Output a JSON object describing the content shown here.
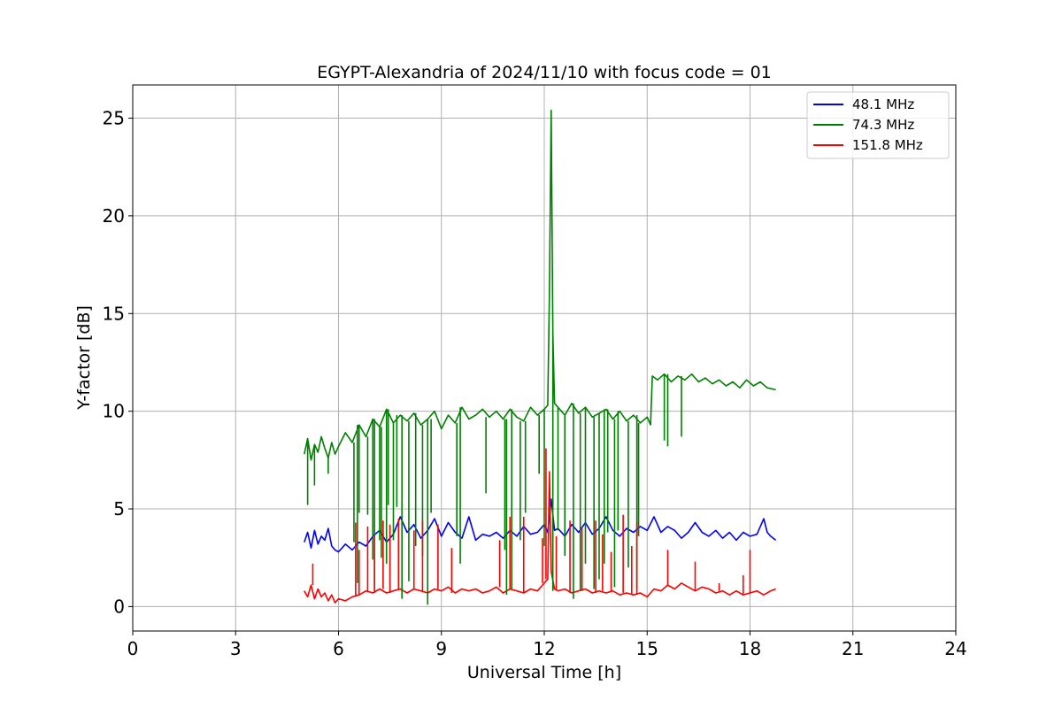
{
  "chart_data": {
    "type": "line",
    "title": "EGYPT-Alexandria of 2024/11/10 with focus code = 01",
    "xlabel": "Universal Time [h]",
    "ylabel": "Y-factor [dB]",
    "xlim": [
      0,
      24
    ],
    "ylim": [
      -1.25,
      26.7
    ],
    "xticks": [
      0,
      3,
      6,
      9,
      12,
      15,
      18,
      21,
      24
    ],
    "yticks": [
      0,
      5,
      10,
      15,
      20,
      25
    ],
    "xtick_labels": [
      "0",
      "3",
      "6",
      "9",
      "12",
      "15",
      "18",
      "21",
      "24"
    ],
    "ytick_labels": [
      "0",
      "5",
      "10",
      "15",
      "20",
      "25"
    ],
    "grid": true,
    "legend_position": "top-right",
    "series": [
      {
        "name": " 48.1 MHz",
        "color": "#0000ff",
        "x": [
          5.0,
          5.1,
          5.2,
          5.3,
          5.4,
          5.5,
          5.6,
          5.7,
          5.8,
          5.9,
          6.0,
          6.2,
          6.4,
          6.6,
          6.8,
          7.0,
          7.2,
          7.4,
          7.6,
          7.8,
          8.0,
          8.2,
          8.4,
          8.6,
          8.8,
          9.0,
          9.2,
          9.4,
          9.6,
          9.8,
          10.0,
          10.2,
          10.4,
          10.6,
          10.8,
          11.0,
          11.2,
          11.4,
          11.6,
          11.8,
          12.0,
          12.1,
          12.2,
          12.3,
          12.4,
          12.6,
          12.8,
          13.0,
          13.2,
          13.4,
          13.6,
          13.8,
          14.0,
          14.2,
          14.4,
          14.6,
          14.8,
          15.0,
          15.2,
          15.4,
          15.6,
          15.8,
          16.0,
          16.2,
          16.4,
          16.6,
          16.8,
          17.0,
          17.2,
          17.4,
          17.6,
          17.8,
          18.0,
          18.2,
          18.4,
          18.5,
          18.6,
          18.75
        ],
        "y": [
          3.3,
          3.8,
          3.0,
          3.9,
          3.2,
          3.6,
          3.4,
          4.0,
          3.1,
          2.9,
          2.8,
          3.2,
          2.9,
          3.3,
          3.1,
          3.6,
          3.9,
          3.3,
          3.7,
          4.6,
          3.8,
          4.2,
          3.5,
          3.9,
          4.5,
          3.6,
          4.3,
          3.8,
          3.5,
          4.6,
          3.4,
          3.7,
          3.6,
          3.8,
          3.5,
          3.9,
          3.6,
          4.1,
          3.7,
          3.8,
          4.2,
          3.8,
          5.5,
          3.9,
          4.0,
          3.6,
          4.2,
          3.8,
          4.3,
          3.7,
          4.0,
          4.6,
          3.9,
          3.6,
          4.0,
          3.8,
          4.1,
          3.9,
          4.6,
          3.8,
          4.1,
          3.9,
          3.5,
          3.8,
          4.3,
          3.8,
          3.6,
          3.9,
          3.5,
          3.8,
          3.4,
          3.8,
          3.6,
          3.7,
          4.5,
          3.8,
          3.6,
          3.4
        ]
      },
      {
        "name": " 74.3 MHz",
        "color": "#008000",
        "x": [
          5.0,
          5.1,
          5.2,
          5.3,
          5.4,
          5.5,
          5.6,
          5.7,
          5.8,
          5.9,
          6.0,
          6.2,
          6.4,
          6.6,
          6.8,
          7.0,
          7.2,
          7.4,
          7.6,
          7.8,
          8.0,
          8.2,
          8.4,
          8.6,
          8.8,
          9.0,
          9.2,
          9.4,
          9.6,
          9.8,
          10.0,
          10.2,
          10.4,
          10.6,
          10.8,
          11.0,
          11.2,
          11.4,
          11.6,
          11.8,
          12.0,
          12.1,
          12.15,
          12.2,
          12.25,
          12.3,
          12.4,
          12.6,
          12.8,
          13.0,
          13.2,
          13.4,
          13.6,
          13.8,
          14.0,
          14.2,
          14.4,
          14.6,
          14.8,
          15.0,
          15.1,
          15.15,
          15.3,
          15.5,
          15.7,
          15.9,
          16.1,
          16.3,
          16.5,
          16.7,
          16.9,
          17.1,
          17.3,
          17.5,
          17.7,
          17.9,
          18.1,
          18.3,
          18.5,
          18.75
        ],
        "y": [
          7.8,
          8.6,
          7.5,
          8.3,
          7.9,
          8.7,
          8.1,
          7.6,
          8.4,
          7.8,
          8.2,
          8.9,
          8.4,
          9.3,
          8.7,
          9.6,
          9.2,
          10.1,
          9.4,
          9.8,
          9.5,
          9.9,
          9.3,
          9.6,
          10.0,
          9.1,
          9.8,
          9.4,
          10.2,
          9.6,
          9.8,
          10.1,
          9.7,
          10.0,
          9.6,
          10.1,
          9.7,
          9.5,
          10.2,
          9.8,
          10.1,
          10.3,
          16.0,
          25.4,
          14.0,
          10.4,
          10.2,
          9.8,
          10.4,
          9.9,
          10.2,
          9.7,
          9.9,
          10.1,
          9.6,
          10.0,
          9.5,
          9.8,
          9.4,
          9.7,
          9.3,
          11.8,
          11.6,
          11.9,
          11.5,
          11.8,
          11.6,
          11.9,
          11.5,
          11.7,
          11.4,
          11.6,
          11.3,
          11.5,
          11.2,
          11.6,
          11.3,
          11.5,
          11.2,
          11.1
        ]
      },
      {
        "name": " 151.8 MHz",
        "color": "#ff0000",
        "x": [
          5.0,
          5.1,
          5.2,
          5.3,
          5.4,
          5.5,
          5.6,
          5.7,
          5.8,
          5.9,
          6.0,
          6.2,
          6.4,
          6.6,
          6.8,
          7.0,
          7.2,
          7.4,
          7.6,
          7.8,
          8.0,
          8.2,
          8.4,
          8.6,
          8.8,
          9.0,
          9.2,
          9.4,
          9.6,
          9.8,
          10.0,
          10.2,
          10.4,
          10.6,
          10.8,
          11.0,
          11.2,
          11.4,
          11.6,
          11.8,
          12.0,
          12.1,
          12.15,
          12.2,
          12.3,
          12.4,
          12.6,
          12.8,
          13.0,
          13.2,
          13.4,
          13.6,
          13.8,
          14.0,
          14.2,
          14.4,
          14.6,
          14.8,
          15.0,
          15.2,
          15.4,
          15.6,
          15.8,
          16.0,
          16.2,
          16.4,
          16.6,
          16.8,
          17.0,
          17.2,
          17.4,
          17.6,
          17.8,
          18.0,
          18.2,
          18.4,
          18.6,
          18.75
        ],
        "y": [
          0.8,
          0.5,
          1.1,
          0.4,
          0.9,
          0.5,
          0.7,
          0.3,
          0.6,
          0.2,
          0.4,
          0.3,
          0.5,
          0.6,
          0.8,
          0.7,
          0.9,
          0.7,
          0.8,
          0.9,
          0.7,
          0.9,
          0.8,
          0.7,
          0.9,
          0.8,
          1.0,
          0.7,
          0.9,
          0.8,
          0.9,
          0.7,
          0.8,
          1.0,
          0.7,
          0.9,
          0.8,
          0.7,
          0.9,
          0.8,
          1.2,
          1.4,
          6.9,
          1.8,
          0.9,
          0.8,
          0.9,
          0.7,
          0.8,
          0.9,
          0.7,
          0.8,
          0.7,
          0.8,
          0.6,
          0.7,
          0.6,
          0.7,
          0.5,
          0.9,
          0.8,
          1.1,
          0.9,
          1.2,
          1.0,
          0.8,
          1.0,
          0.9,
          0.7,
          0.8,
          0.6,
          0.8,
          0.6,
          0.7,
          0.8,
          0.6,
          0.8,
          0.9
        ]
      }
    ],
    "dropouts": [
      {
        "series": 1,
        "x": [
          5.1,
          5.3,
          5.7,
          6.45,
          6.55,
          6.6,
          6.85,
          7.0,
          7.05,
          7.2,
          7.25,
          7.4,
          7.45,
          7.6,
          7.7,
          7.85,
          8.05,
          8.25,
          8.45,
          8.6,
          8.7,
          9.45,
          9.55,
          10.3,
          10.85,
          10.9,
          11.05,
          11.3,
          11.45,
          11.85,
          12.0,
          12.25,
          12.4,
          12.6,
          12.85,
          13.05,
          13.2,
          13.45,
          13.6,
          13.75,
          13.85,
          14.05,
          14.15,
          14.45,
          14.7,
          14.75,
          15.5,
          15.6,
          16.0
        ],
        "y": [
          5.2,
          6.2,
          6.8,
          3.3,
          1.2,
          4.8,
          4.7,
          2.4,
          0.9,
          3.4,
          2.5,
          2.2,
          5.2,
          3.4,
          5.1,
          0.4,
          1.3,
          3.1,
          2.6,
          0.1,
          4.8,
          3.6,
          2.2,
          5.8,
          2.9,
          0.6,
          0.9,
          3.4,
          4.8,
          6.8,
          3.1,
          0.8,
          3.9,
          2.6,
          0.4,
          0.8,
          2.2,
          0.9,
          1.4,
          2.2,
          3.8,
          1.0,
          3.9,
          2.0,
          0.9,
          3.6,
          8.5,
          8.2,
          8.7
        ]
      },
      {
        "series": 2,
        "x": [
          5.25,
          6.5,
          6.6,
          6.85,
          7.05,
          7.3,
          7.5,
          7.75,
          8.2,
          8.45,
          8.9,
          9.3,
          10.7,
          11.0,
          11.4,
          11.95,
          12.05,
          12.35,
          12.75,
          13.1,
          13.5,
          13.7,
          13.95,
          14.3,
          14.55,
          14.7,
          15.6,
          16.4,
          17.1,
          17.8,
          18.0
        ],
        "y": [
          2.2,
          4.3,
          2.9,
          4.1,
          3.6,
          4.4,
          4.2,
          4.5,
          3.9,
          4.4,
          4.2,
          3.0,
          3.4,
          4.6,
          4.6,
          3.5,
          8.1,
          3.6,
          4.4,
          4.1,
          4.4,
          3.7,
          2.8,
          4.7,
          3.1,
          4.3,
          2.9,
          2.3,
          1.2,
          1.6,
          2.9
        ]
      }
    ]
  }
}
